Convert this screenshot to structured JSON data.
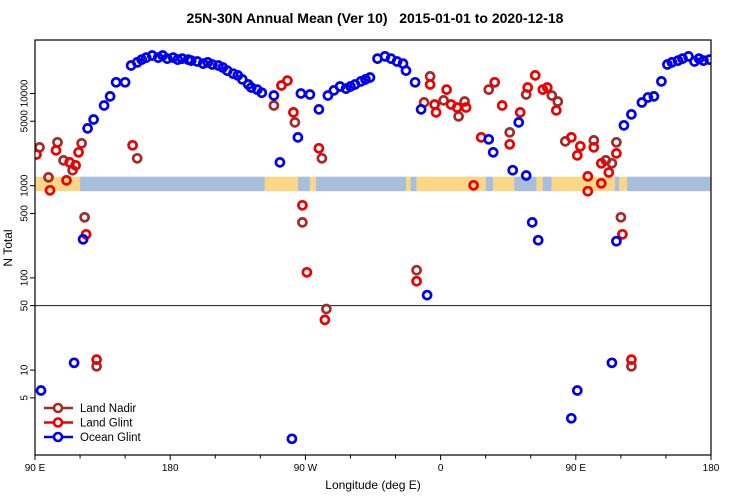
{
  "title": "25N-30N Annual Mean (Ver 10)   2015-01-01 to 2020-12-18",
  "x_axis": {
    "label": "Longitude (deg E)",
    "range": [
      90,
      540
    ],
    "minor_step": 30,
    "ticks": [
      {
        "lon": 90,
        "label": "90 E"
      },
      {
        "lon": 180,
        "label": "180"
      },
      {
        "lon": 270,
        "label": "90 W"
      },
      {
        "lon": 360,
        "label": "0"
      },
      {
        "lon": 450,
        "label": "90 E"
      },
      {
        "lon": 540,
        "label": "180"
      }
    ]
  },
  "y_axis": {
    "label": "N Total",
    "scale": "log",
    "range": [
      1.2,
      38000
    ],
    "ticks": [
      5,
      10,
      50,
      100,
      500,
      1000,
      5000,
      10000
    ]
  },
  "reference_line": {
    "value": 50
  },
  "surface_band": {
    "value_range": [
      870,
      1250
    ],
    "land_color": "#FAD687",
    "ocean_color": "#A8BFDC",
    "segments": [
      {
        "surface": "land",
        "from": 90,
        "to": 120
      },
      {
        "surface": "ocean",
        "from": 120,
        "to": 243
      },
      {
        "surface": "land",
        "from": 243,
        "to": 265
      },
      {
        "surface": "ocean",
        "from": 265,
        "to": 273
      },
      {
        "surface": "land",
        "from": 273,
        "to": 277
      },
      {
        "surface": "ocean",
        "from": 277,
        "to": 337
      },
      {
        "surface": "land",
        "from": 337,
        "to": 340
      },
      {
        "surface": "ocean",
        "from": 340,
        "to": 344
      },
      {
        "surface": "land",
        "from": 344,
        "to": 390
      },
      {
        "surface": "ocean",
        "from": 390,
        "to": 395
      },
      {
        "surface": "land",
        "from": 395,
        "to": 409
      },
      {
        "surface": "ocean",
        "from": 409,
        "to": 424
      },
      {
        "surface": "land",
        "from": 424,
        "to": 428
      },
      {
        "surface": "ocean",
        "from": 428,
        "to": 434
      },
      {
        "surface": "land",
        "from": 434,
        "to": 476
      },
      {
        "surface": "ocean",
        "from": 476,
        "to": 479
      },
      {
        "surface": "land",
        "from": 479,
        "to": 484
      },
      {
        "surface": "ocean",
        "from": 484,
        "to": 540
      }
    ]
  },
  "legend": {
    "items": [
      {
        "label": "Land Nadir",
        "color": "#A52A2A"
      },
      {
        "label": "Land Glint",
        "color": "#EE0000"
      },
      {
        "label": "Ocean Glint",
        "color": "#0000EE"
      }
    ]
  },
  "chart_data": {
    "type": "scatter",
    "x_units": "degrees longitude (axis runs 90E eastward around to 180)",
    "series": [
      {
        "name": "Land Nadir",
        "color": "#A52A2A",
        "points": [
          [
            93,
            2600
          ],
          [
            105,
            2950
          ],
          [
            109,
            1880
          ],
          [
            99,
            1230
          ],
          [
            121,
            2880
          ],
          [
            115,
            1470
          ],
          [
            123,
            454
          ],
          [
            158,
            1980
          ],
          [
            249,
            7410
          ],
          [
            263,
            4850
          ],
          [
            281,
            1980
          ],
          [
            268,
            400
          ],
          [
            284,
            46
          ],
          [
            344,
            121
          ],
          [
            349,
            8000
          ],
          [
            353,
            15300
          ],
          [
            362,
            8400
          ],
          [
            372,
            5640
          ],
          [
            376,
            8190
          ],
          [
            392,
            11000
          ],
          [
            406,
            3780
          ],
          [
            417,
            9750
          ],
          [
            434,
            9500
          ],
          [
            438,
            8190
          ],
          [
            443,
            3020
          ],
          [
            462,
            3100
          ],
          [
            477,
            2950
          ],
          [
            470,
            1880
          ],
          [
            474,
            1750
          ],
          [
            480,
            454
          ],
          [
            131,
            11
          ],
          [
            487,
            11
          ]
        ]
      },
      {
        "name": "Land Glint",
        "color": "#EE0000",
        "points": [
          [
            91,
            2180
          ],
          [
            104,
            2410
          ],
          [
            113,
            1790
          ],
          [
            111,
            1140
          ],
          [
            119,
            2300
          ],
          [
            117,
            1660
          ],
          [
            100,
            890
          ],
          [
            124,
            297
          ],
          [
            131,
            13
          ],
          [
            155,
            2740
          ],
          [
            254,
            12200
          ],
          [
            258,
            13800
          ],
          [
            262,
            6230
          ],
          [
            279,
            2540
          ],
          [
            268,
            612
          ],
          [
            271,
            115
          ],
          [
            283,
            35
          ],
          [
            344,
            92
          ],
          [
            353,
            12500
          ],
          [
            356,
            7600
          ],
          [
            357,
            6230
          ],
          [
            364,
            11000
          ],
          [
            367,
            7600
          ],
          [
            371,
            7050
          ],
          [
            377,
            7050
          ],
          [
            382,
            1010
          ],
          [
            387,
            3340
          ],
          [
            396,
            13200
          ],
          [
            401,
            7410
          ],
          [
            406,
            2810
          ],
          [
            413,
            6230
          ],
          [
            418,
            11600
          ],
          [
            423,
            15700
          ],
          [
            428,
            11000
          ],
          [
            431,
            11600
          ],
          [
            437,
            6550
          ],
          [
            447,
            3340
          ],
          [
            453,
            2670
          ],
          [
            451,
            2130
          ],
          [
            462,
            2600
          ],
          [
            477,
            2240
          ],
          [
            467,
            1750
          ],
          [
            472,
            1390
          ],
          [
            458,
            1260
          ],
          [
            467,
            1060
          ],
          [
            458,
            870
          ],
          [
            481,
            297
          ],
          [
            487,
            13
          ]
        ]
      },
      {
        "name": "Ocean Glint",
        "color": "#0000EE",
        "points": [
          [
            125,
            4180
          ],
          [
            129,
            5220
          ],
          [
            136,
            7410
          ],
          [
            140,
            9290
          ],
          [
            144,
            13200
          ],
          [
            150,
            13200
          ],
          [
            154,
            20100
          ],
          [
            158,
            21700
          ],
          [
            161,
            23300
          ],
          [
            164,
            24500
          ],
          [
            168,
            25800
          ],
          [
            172,
            24500
          ],
          [
            175,
            25800
          ],
          [
            178,
            23900
          ],
          [
            182,
            24500
          ],
          [
            185,
            23300
          ],
          [
            188,
            23900
          ],
          [
            192,
            23300
          ],
          [
            194,
            22700
          ],
          [
            198,
            22200
          ],
          [
            202,
            21100
          ],
          [
            205,
            21700
          ],
          [
            208,
            20600
          ],
          [
            212,
            20100
          ],
          [
            215,
            19100
          ],
          [
            218,
            17700
          ],
          [
            222,
            16400
          ],
          [
            225,
            15700
          ],
          [
            228,
            14200
          ],
          [
            232,
            12500
          ],
          [
            234,
            11600
          ],
          [
            238,
            11000
          ],
          [
            241,
            10200
          ],
          [
            249,
            9500
          ],
          [
            253,
            1790
          ],
          [
            265,
            3340
          ],
          [
            279,
            6710
          ],
          [
            267,
            10000
          ],
          [
            273,
            9750
          ],
          [
            285,
            9500
          ],
          [
            289,
            10800
          ],
          [
            293,
            11900
          ],
          [
            297,
            11300
          ],
          [
            300,
            11900
          ],
          [
            303,
            12500
          ],
          [
            307,
            13500
          ],
          [
            310,
            14200
          ],
          [
            313,
            14900
          ],
          [
            318,
            23900
          ],
          [
            323,
            25200
          ],
          [
            327,
            23900
          ],
          [
            331,
            22200
          ],
          [
            335,
            21100
          ],
          [
            337,
            17700
          ],
          [
            343,
            13200
          ],
          [
            347,
            6710
          ],
          [
            351,
            65
          ],
          [
            392,
            3180
          ],
          [
            395,
            2300
          ],
          [
            412,
            4850
          ],
          [
            408,
            1470
          ],
          [
            417,
            1290
          ],
          [
            421,
            400
          ],
          [
            425,
            256
          ],
          [
            482,
            4500
          ],
          [
            487,
            5930
          ],
          [
            494,
            7980
          ],
          [
            498,
            9050
          ],
          [
            502,
            9290
          ],
          [
            507,
            13500
          ],
          [
            511,
            20600
          ],
          [
            514,
            21700
          ],
          [
            518,
            22700
          ],
          [
            521,
            23900
          ],
          [
            525,
            25200
          ],
          [
            529,
            22200
          ],
          [
            532,
            23900
          ],
          [
            535,
            22700
          ],
          [
            539,
            23300
          ],
          [
            122,
            262
          ],
          [
            477,
            250
          ],
          [
            116,
            12
          ],
          [
            474,
            12
          ],
          [
            94,
            6
          ],
          [
            451,
            6
          ],
          [
            447,
            3
          ],
          [
            261,
            1.8
          ]
        ]
      }
    ]
  }
}
